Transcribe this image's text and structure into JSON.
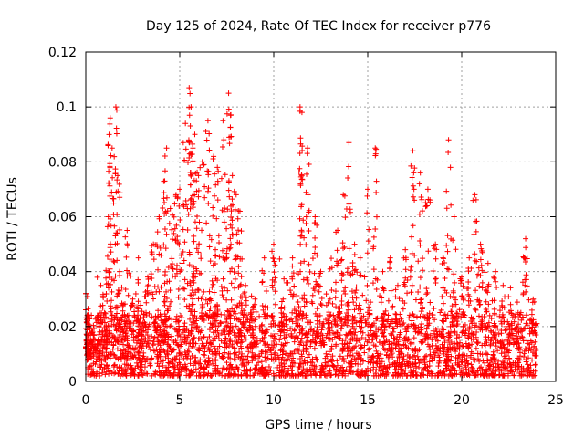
{
  "chart_data": {
    "type": "scatter",
    "title": "Day 125 of 2024, Rate Of TEC Index for receiver p776",
    "xlabel": "GPS time / hours",
    "ylabel": "ROTI / TECUs",
    "xlim": [
      0,
      25
    ],
    "ylim": [
      0,
      0.12
    ],
    "x_ticks": [
      0,
      5,
      10,
      15,
      20,
      25
    ],
    "x_tick_labels": [
      "0",
      "5",
      "10",
      "15",
      "20",
      "25"
    ],
    "y_ticks": [
      0,
      0.02,
      0.04,
      0.06,
      0.08,
      0.1,
      0.12
    ],
    "y_tick_labels": [
      "0",
      "0.02",
      "0.04",
      "0.06",
      "0.08",
      "0.1",
      "0.12"
    ],
    "grid": true,
    "marker": "+",
    "color": "#ff0000",
    "x_range_of_data": [
      0,
      24
    ],
    "series": [
      {
        "x": [
          0.0,
          0.05,
          0.1,
          0.2,
          0.3,
          0.5,
          0.8,
          1.0,
          1.2,
          1.3,
          1.4,
          1.6,
          1.7,
          1.8,
          2.0,
          2.2,
          2.5,
          2.8,
          3.0,
          3.3,
          3.6,
          3.9,
          4.2,
          4.3,
          4.5,
          4.8,
          5.0,
          5.3,
          5.5,
          5.6,
          5.7,
          5.8,
          6.0,
          6.2,
          6.5,
          6.8,
          7.0,
          7.3,
          7.6,
          7.7,
          7.8,
          8.0,
          8.2,
          8.5,
          8.8,
          9.0,
          9.5,
          10.0,
          10.5,
          11.0,
          11.4,
          11.5,
          11.8,
          12.2,
          12.5,
          13.0,
          13.4,
          13.7,
          14.0,
          14.3,
          14.6,
          15.0,
          15.4,
          15.8,
          16.2,
          16.6,
          17.0,
          17.4,
          17.8,
          18.2,
          18.6,
          19.0,
          19.3,
          19.6,
          20.0,
          20.4,
          20.7,
          21.0,
          21.4,
          21.8,
          22.2,
          22.6,
          23.0,
          23.4,
          23.8
        ],
        "y": [
          0.032,
          0.015,
          0.022,
          0.01,
          0.018,
          0.012,
          0.035,
          0.025,
          0.06,
          0.096,
          0.085,
          0.1,
          0.075,
          0.04,
          0.028,
          0.055,
          0.03,
          0.045,
          0.02,
          0.038,
          0.05,
          0.06,
          0.073,
          0.085,
          0.063,
          0.068,
          0.07,
          0.094,
          0.107,
          0.1,
          0.085,
          0.09,
          0.075,
          0.08,
          0.095,
          0.082,
          0.078,
          0.095,
          0.105,
          0.097,
          0.075,
          0.068,
          0.062,
          0.035,
          0.025,
          0.03,
          0.045,
          0.05,
          0.03,
          0.045,
          0.1,
          0.098,
          0.085,
          0.06,
          0.04,
          0.03,
          0.055,
          0.068,
          0.087,
          0.05,
          0.045,
          0.07,
          0.085,
          0.04,
          0.045,
          0.035,
          0.048,
          0.084,
          0.076,
          0.07,
          0.05,
          0.045,
          0.088,
          0.06,
          0.038,
          0.045,
          0.068,
          0.05,
          0.043,
          0.04,
          0.035,
          0.028,
          0.025,
          0.052,
          0.03
        ]
      }
    ],
    "scatter_band": {
      "description_values": "dense base of points across 0–24 h",
      "y_min": 0.002,
      "y_typical_max": 0.025
    }
  }
}
